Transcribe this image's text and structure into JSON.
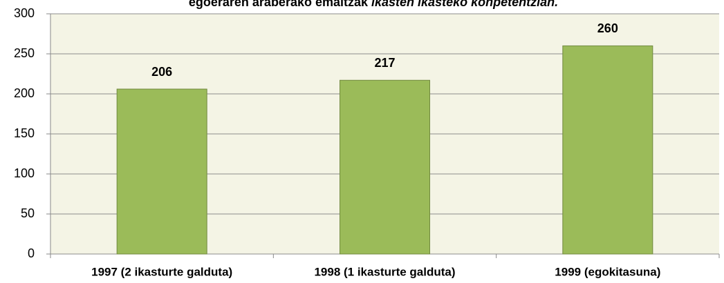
{
  "chart_data": {
    "type": "bar",
    "title": [
      "egoeraren araberako emaitzak ",
      "ikasten ikasteko konpetentzian."
    ],
    "categories": [
      "1997 (2 ikasturte galduta)",
      "1998 (1 ikasturte galduta)",
      "1999 (egokitasuna)"
    ],
    "values": [
      206,
      217,
      260
    ],
    "color": "#9bbb59",
    "ylim": [
      0,
      300
    ],
    "yticks": [
      0,
      50,
      100,
      150,
      200,
      250,
      300
    ],
    "grid": true
  }
}
